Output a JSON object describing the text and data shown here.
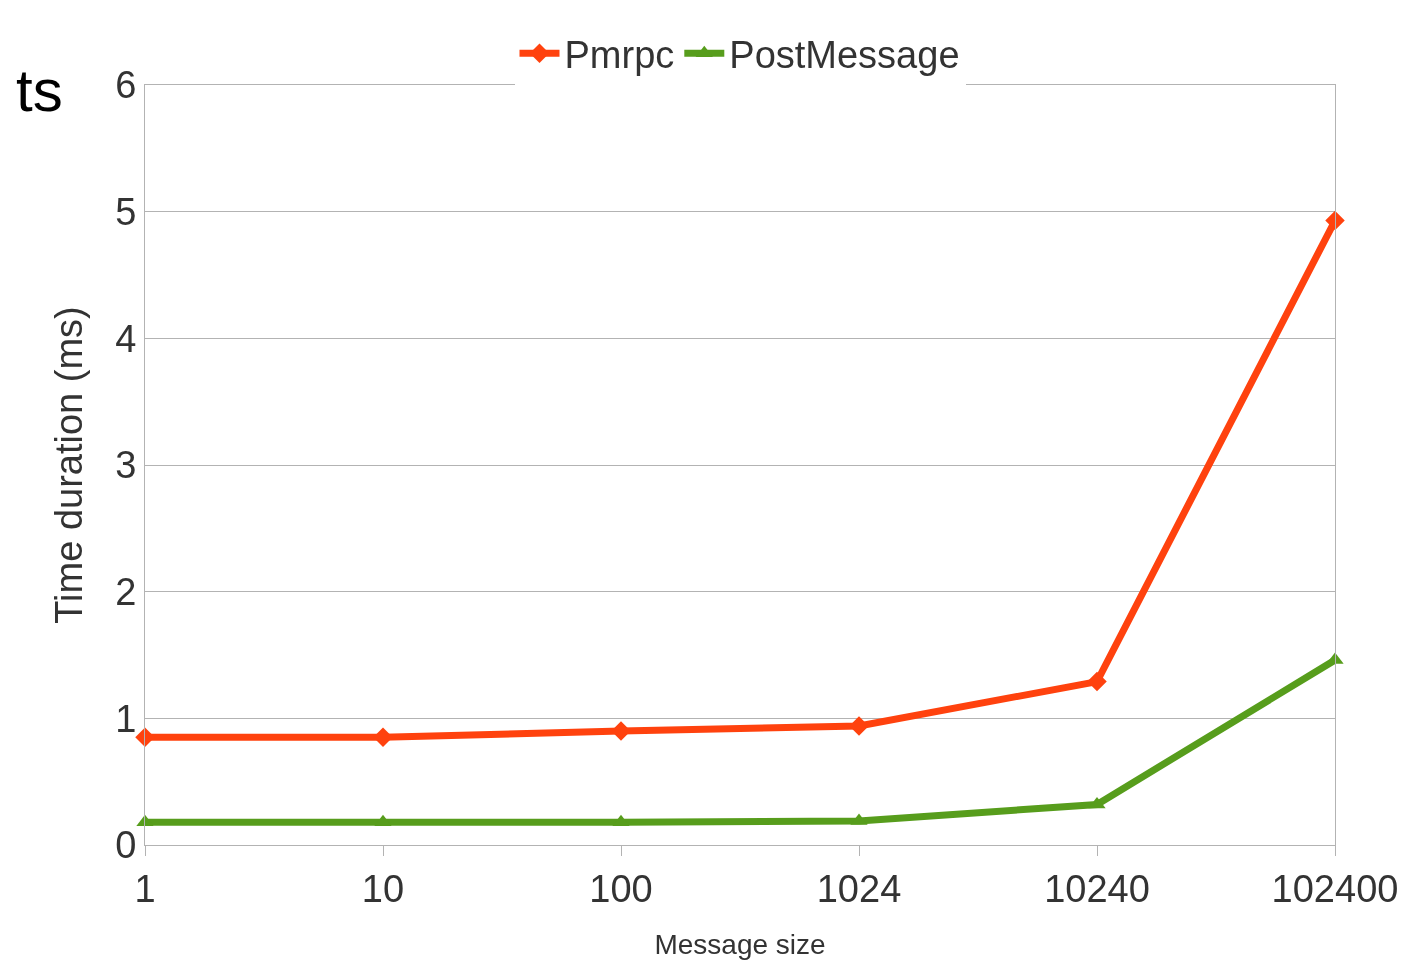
{
  "chart_data": {
    "type": "line",
    "xlabel": "Message size",
    "ylabel": "Time duration (ms)",
    "categories": [
      "1",
      "10",
      "100",
      "1024",
      "10240",
      "102400"
    ],
    "series": [
      {
        "name": "Pmrpc",
        "color": "#ff420e",
        "values": [
          0.85,
          0.85,
          0.9,
          0.94,
          1.29,
          4.93
        ],
        "marker": "diamond"
      },
      {
        "name": "PostMessage",
        "color": "#579d1c",
        "values": [
          0.18,
          0.18,
          0.18,
          0.19,
          0.32,
          1.46
        ],
        "marker": "triangle"
      }
    ],
    "ylim": [
      0,
      6
    ],
    "yticks": [
      0,
      1,
      2,
      3,
      4,
      5,
      6
    ],
    "grid": "y",
    "legend": "top",
    "line_style": "solid",
    "annotations": [
      "ts"
    ]
  }
}
